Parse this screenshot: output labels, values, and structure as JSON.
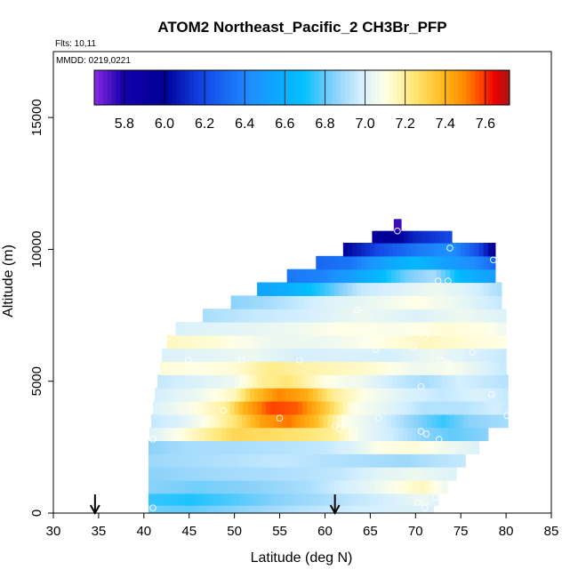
{
  "chart_data": {
    "type": "heatmap",
    "title": "ATOM2 Northeast_Pacific_2 CH3Br_PFP",
    "annotations": {
      "flights": "Flts: 10,11",
      "dates": "MMDD: 0219,0221"
    },
    "xlabel": "Latitude (deg N)",
    "ylabel": "Altitude (m)",
    "xlim": [
      30,
      85
    ],
    "ylim": [
      0,
      17500
    ],
    "xticks": [
      30,
      35,
      40,
      45,
      50,
      55,
      60,
      65,
      70,
      75,
      80,
      85
    ],
    "yticks": [
      0,
      5000,
      10000,
      15000
    ],
    "colorbar": {
      "range": [
        5.65,
        7.72
      ],
      "ticks": [
        5.8,
        6.0,
        6.2,
        6.4,
        6.6,
        6.8,
        7.0,
        7.2,
        7.4,
        7.6
      ],
      "tick_labels": [
        "5.8",
        "6.0",
        "6.2",
        "6.4",
        "6.6",
        "6.8",
        "7.0",
        "7.2",
        "7.4",
        "7.6"
      ],
      "placement": "top-inside"
    },
    "arrows": [
      34.6,
      61.1
    ],
    "rows": [
      {
        "z": 10900,
        "x0": 67.6,
        "x1": 68.4,
        "pts": [
          [
            67.6,
            5.75
          ],
          [
            68.4,
            5.75
          ]
        ]
      },
      {
        "z": 10500,
        "x0": 65.2,
        "x1": 74.0,
        "pts": [
          [
            65.2,
            5.95
          ],
          [
            68,
            6.0
          ],
          [
            70,
            6.1
          ],
          [
            74,
            6.2
          ]
        ]
      },
      {
        "z": 10000,
        "x0": 62.0,
        "x1": 78.8,
        "pts": [
          [
            62,
            6.0
          ],
          [
            66,
            6.2
          ],
          [
            70,
            6.35
          ],
          [
            74,
            6.45
          ],
          [
            77,
            6.2
          ],
          [
            78.8,
            5.95
          ]
        ]
      },
      {
        "z": 9500,
        "x0": 59.0,
        "x1": 78.8,
        "pts": [
          [
            59,
            6.3
          ],
          [
            63,
            6.35
          ],
          [
            67,
            6.55
          ],
          [
            70,
            6.65
          ],
          [
            74,
            6.5
          ],
          [
            77,
            6.4
          ],
          [
            78.8,
            6.3
          ]
        ]
      },
      {
        "z": 9000,
        "x0": 55.8,
        "x1": 78.8,
        "pts": [
          [
            55.8,
            6.35
          ],
          [
            60,
            6.4
          ],
          [
            65,
            6.6
          ],
          [
            69,
            6.82
          ],
          [
            72,
            6.9
          ],
          [
            75,
            6.65
          ],
          [
            78.8,
            6.5
          ]
        ]
      },
      {
        "z": 8500,
        "x0": 52.5,
        "x1": 79.5,
        "pts": [
          [
            52.5,
            6.55
          ],
          [
            56,
            6.6
          ],
          [
            60,
            6.75
          ],
          [
            64,
            6.95
          ],
          [
            68,
            7.0
          ],
          [
            72,
            7.05
          ],
          [
            76,
            7.0
          ],
          [
            79.5,
            6.9
          ]
        ]
      },
      {
        "z": 8000,
        "x0": 49.6,
        "x1": 79.5,
        "pts": [
          [
            49.6,
            6.85
          ],
          [
            54,
            6.9
          ],
          [
            60,
            7.0
          ],
          [
            66,
            7.05
          ],
          [
            70,
            7.1
          ],
          [
            74,
            7.05
          ],
          [
            79.5,
            6.95
          ]
        ]
      },
      {
        "z": 7500,
        "x0": 46.5,
        "x1": 80.0,
        "pts": [
          [
            46.5,
            6.9
          ],
          [
            52,
            6.95
          ],
          [
            58,
            6.98
          ],
          [
            64,
            7.05
          ],
          [
            70,
            7.0
          ],
          [
            75,
            7.05
          ],
          [
            80,
            7.0
          ]
        ]
      },
      {
        "z": 7000,
        "x0": 43.5,
        "x1": 80.0,
        "pts": [
          [
            43.5,
            7.0
          ],
          [
            50,
            7.02
          ],
          [
            56,
            7.05
          ],
          [
            62,
            7.1
          ],
          [
            68,
            7.08
          ],
          [
            73,
            7.12
          ],
          [
            78,
            7.1
          ],
          [
            80,
            7.05
          ]
        ]
      },
      {
        "z": 6500,
        "x0": 42.5,
        "x1": 80.0,
        "pts": [
          [
            42.5,
            7.15
          ],
          [
            48,
            7.12
          ],
          [
            54,
            7.05
          ],
          [
            60,
            7.05
          ],
          [
            66,
            7.1
          ],
          [
            71,
            7.15
          ],
          [
            76,
            7.12
          ],
          [
            80,
            7.1
          ]
        ]
      },
      {
        "z": 6000,
        "x0": 42.0,
        "x1": 80.0,
        "pts": [
          [
            42,
            7.0
          ],
          [
            47,
            7.02
          ],
          [
            52,
            7.05
          ],
          [
            57,
            6.98
          ],
          [
            62,
            7.0
          ],
          [
            67,
            6.98
          ],
          [
            72,
            7.05
          ],
          [
            76,
            7.0
          ],
          [
            80,
            6.95
          ]
        ]
      },
      {
        "z": 5500,
        "x0": 41.8,
        "x1": 80.0,
        "pts": [
          [
            41.8,
            7.12
          ],
          [
            46,
            7.1
          ],
          [
            50,
            7.12
          ],
          [
            54,
            7.22
          ],
          [
            58,
            7.18
          ],
          [
            62,
            7.15
          ],
          [
            66,
            7.12
          ],
          [
            70,
            7.05
          ],
          [
            74,
            7.08
          ],
          [
            78,
            7.0
          ],
          [
            80,
            6.95
          ]
        ]
      },
      {
        "z": 5000,
        "x0": 41.5,
        "x1": 80.2,
        "pts": [
          [
            41.5,
            6.95
          ],
          [
            46,
            7.0
          ],
          [
            50,
            7.05
          ],
          [
            53,
            7.2
          ],
          [
            56,
            7.25
          ],
          [
            60,
            7.1
          ],
          [
            64,
            7.05
          ],
          [
            68,
            6.95
          ],
          [
            71,
            6.9
          ],
          [
            75,
            6.98
          ],
          [
            80.2,
            6.92
          ]
        ]
      },
      {
        "z": 4500,
        "x0": 41.2,
        "x1": 80.2,
        "pts": [
          [
            41.2,
            6.98
          ],
          [
            46,
            7.05
          ],
          [
            50,
            7.15
          ],
          [
            52,
            7.35
          ],
          [
            55,
            7.5
          ],
          [
            58,
            7.42
          ],
          [
            61,
            7.2
          ],
          [
            65,
            7.08
          ],
          [
            69,
            7.0
          ],
          [
            73,
            6.95
          ],
          [
            77,
            7.0
          ],
          [
            80.2,
            6.95
          ]
        ]
      },
      {
        "z": 4000,
        "x0": 41.0,
        "x1": 80.2,
        "pts": [
          [
            41,
            7.0
          ],
          [
            45,
            7.08
          ],
          [
            49,
            7.2
          ],
          [
            51,
            7.4
          ],
          [
            54,
            7.58
          ],
          [
            57,
            7.55
          ],
          [
            60,
            7.35
          ],
          [
            63,
            7.1
          ],
          [
            67,
            7.02
          ],
          [
            71,
            6.92
          ],
          [
            75,
            6.92
          ],
          [
            79,
            6.98
          ],
          [
            80.2,
            6.95
          ]
        ]
      },
      {
        "z": 3500,
        "x0": 40.8,
        "x1": 80.2,
        "pts": [
          [
            40.8,
            6.95
          ],
          [
            44,
            7.0
          ],
          [
            47,
            7.1
          ],
          [
            50,
            7.25
          ],
          [
            53,
            7.45
          ],
          [
            56,
            7.52
          ],
          [
            59,
            7.38
          ],
          [
            62,
            7.1
          ],
          [
            66,
            7.0
          ],
          [
            70,
            6.85
          ],
          [
            73,
            6.75
          ],
          [
            76,
            6.85
          ],
          [
            80.2,
            6.9
          ]
        ]
      },
      {
        "z": 3000,
        "x0": 40.6,
        "x1": 78.0,
        "pts": [
          [
            40.6,
            7.0
          ],
          [
            44,
            7.1
          ],
          [
            47,
            7.2
          ],
          [
            50,
            7.3
          ],
          [
            54,
            7.28
          ],
          [
            58,
            7.25
          ],
          [
            61,
            7.2
          ],
          [
            64,
            7.05
          ],
          [
            68,
            6.95
          ],
          [
            71,
            6.85
          ],
          [
            74,
            6.8
          ],
          [
            78,
            6.85
          ]
        ]
      },
      {
        "z": 2500,
        "x0": 40.5,
        "x1": 77.0,
        "pts": [
          [
            40.5,
            6.85
          ],
          [
            45,
            6.9
          ],
          [
            50,
            6.9
          ],
          [
            55,
            6.92
          ],
          [
            60,
            6.95
          ],
          [
            63,
            7.0
          ],
          [
            66,
            7.1
          ],
          [
            70,
            7.12
          ],
          [
            74,
            7.05
          ],
          [
            77,
            7.0
          ]
        ]
      },
      {
        "z": 2000,
        "x0": 40.5,
        "x1": 75.5,
        "pts": [
          [
            40.5,
            6.88
          ],
          [
            45,
            6.9
          ],
          [
            50,
            6.92
          ],
          [
            55,
            6.95
          ],
          [
            60,
            6.92
          ],
          [
            65,
            6.9
          ],
          [
            69,
            6.88
          ],
          [
            72,
            6.92
          ],
          [
            75.5,
            6.95
          ]
        ]
      },
      {
        "z": 1500,
        "x0": 40.5,
        "x1": 74.5,
        "pts": [
          [
            40.5,
            6.85
          ],
          [
            46,
            6.88
          ],
          [
            52,
            6.9
          ],
          [
            58,
            6.92
          ],
          [
            62,
            6.95
          ],
          [
            66,
            7.02
          ],
          [
            70,
            7.05
          ],
          [
            74.5,
            7.0
          ]
        ]
      },
      {
        "z": 1000,
        "x0": 40.5,
        "x1": 73.5,
        "pts": [
          [
            40.5,
            6.85
          ],
          [
            46,
            6.82
          ],
          [
            52,
            6.85
          ],
          [
            58,
            6.9
          ],
          [
            62,
            6.98
          ],
          [
            66,
            7.05
          ],
          [
            69,
            7.12
          ],
          [
            71,
            7.15
          ],
          [
            73.5,
            7.05
          ]
        ]
      },
      {
        "z": 500,
        "x0": 40.5,
        "x1": 72.5,
        "pts": [
          [
            40.5,
            6.75
          ],
          [
            45,
            6.72
          ],
          [
            50,
            6.78
          ],
          [
            55,
            6.85
          ],
          [
            60,
            6.9
          ],
          [
            64,
            6.95
          ],
          [
            68,
            7.0
          ],
          [
            71,
            7.05
          ],
          [
            72.5,
            7.0
          ]
        ]
      },
      {
        "z": 100,
        "x0": 40.5,
        "x1": 72.0,
        "pts": [
          [
            40.5,
            6.82
          ],
          [
            45,
            6.8
          ],
          [
            50,
            6.85
          ],
          [
            55,
            6.9
          ],
          [
            60,
            6.95
          ],
          [
            64,
            6.98
          ],
          [
            68,
            7.0
          ],
          [
            72,
            7.0
          ]
        ]
      }
    ],
    "samples": [
      [
        68.0,
        10700
      ],
      [
        73.8,
        10050
      ],
      [
        78.6,
        9600
      ],
      [
        72.5,
        8800
      ],
      [
        73.6,
        8800
      ],
      [
        63.6,
        7700
      ],
      [
        71.0,
        7000
      ],
      [
        42.7,
        6700
      ],
      [
        71.0,
        6700
      ],
      [
        64.2,
        6500
      ],
      [
        65.6,
        6200
      ],
      [
        69.8,
        6300
      ],
      [
        76.3,
        6100
      ],
      [
        80.0,
        7000
      ],
      [
        44.9,
        5800
      ],
      [
        50.8,
        5800
      ],
      [
        57.2,
        5800
      ],
      [
        72.8,
        5800
      ],
      [
        73.6,
        5700
      ],
      [
        70.6,
        4800
      ],
      [
        78.4,
        4500
      ],
      [
        48.8,
        3900
      ],
      [
        55.0,
        3600
      ],
      [
        65.9,
        3600
      ],
      [
        80.1,
        3700
      ],
      [
        61.1,
        3300
      ],
      [
        61.6,
        3200
      ],
      [
        70.6,
        3100
      ],
      [
        71.2,
        3000
      ],
      [
        72.6,
        2800
      ],
      [
        41.0,
        2800
      ],
      [
        72.2,
        600
      ],
      [
        70.2,
        400
      ],
      [
        71.0,
        200
      ],
      [
        41.0,
        200
      ]
    ]
  }
}
